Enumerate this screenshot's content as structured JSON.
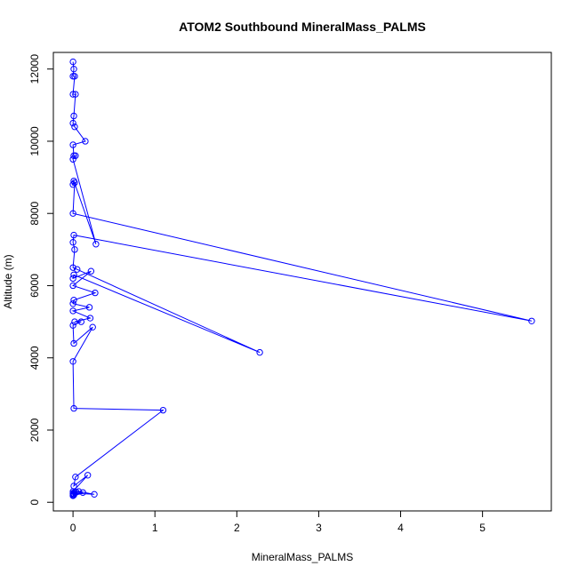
{
  "chart_data": {
    "type": "line",
    "title": "ATOM2 Southbound MineralMass_PALMS",
    "xlabel": "MineralMass_PALMS",
    "ylabel": "Altitude (m)",
    "xlim": [
      -0.24,
      5.84
    ],
    "ylim": [
      -240,
      12460
    ],
    "xticks": [
      0,
      1,
      2,
      3,
      4,
      5
    ],
    "yticks": [
      0,
      2000,
      4000,
      6000,
      8000,
      10000,
      12000
    ],
    "grid": false,
    "legend": "none",
    "series": [
      {
        "color": "#0000ff",
        "marker": "open-circle",
        "x": [
          0.0,
          0.01,
          0.0,
          0.02,
          0.0,
          0.03,
          0.01,
          0.0,
          0.02,
          0.15,
          0.0,
          0.01,
          0.03,
          0.0,
          0.28,
          0.01,
          0.0,
          0.02,
          0.0,
          5.6,
          0.01,
          0.0,
          0.02,
          0.0,
          0.05,
          2.28,
          0.01,
          0.0,
          0.22,
          0.0,
          0.27,
          0.01,
          0.0,
          0.2,
          0.0,
          0.21,
          0.02,
          0.1,
          0.0,
          0.01,
          0.24,
          0.0,
          0.01,
          1.1,
          0.03,
          0.01,
          0.18,
          0.0,
          0.02,
          0.07,
          0.26,
          0.0,
          0.01,
          0.0,
          0.04,
          0.12,
          0.0,
          0.01,
          0.0
        ],
        "y": [
          12200,
          12000,
          11800,
          11800,
          11300,
          11300,
          10700,
          10500,
          10400,
          10000,
          9900,
          9600,
          9600,
          9500,
          7150,
          8900,
          8800,
          8850,
          8000,
          5020,
          7400,
          7200,
          7000,
          6500,
          6450,
          4150,
          6300,
          6200,
          6400,
          6000,
          5800,
          5600,
          5500,
          5400,
          5300,
          5100,
          5000,
          5000,
          4900,
          4400,
          4850,
          3900,
          2600,
          2550,
          700,
          450,
          750,
          300,
          280,
          300,
          220,
          250,
          200,
          250,
          280,
          270,
          180,
          230,
          200
        ]
      }
    ]
  }
}
